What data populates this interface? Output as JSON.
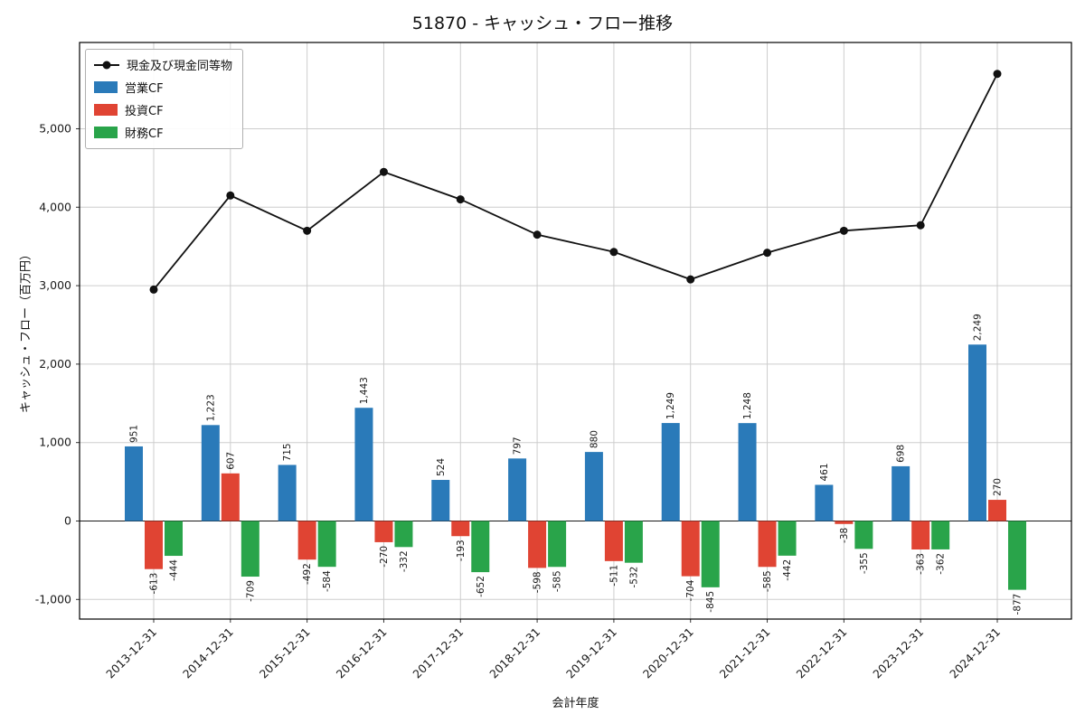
{
  "title": "51870 - キャッシュ・フロー推移",
  "axes": {
    "xlabel": "会計年度",
    "ylabel": "キャッシュ・フロー（百万円）"
  },
  "chart_data": {
    "type": "bar",
    "title": "51870 - キャッシュ・フロー推移",
    "xlabel": "会計年度",
    "ylabel": "キャッシュ・フロー（百万円）",
    "categories": [
      "2013-12-31",
      "2014-12-31",
      "2015-12-31",
      "2016-12-31",
      "2017-12-31",
      "2018-12-31",
      "2019-12-31",
      "2020-12-31",
      "2021-12-31",
      "2022-12-31",
      "2023-12-31",
      "2024-12-31"
    ],
    "series": [
      {
        "name": "現金及び現金同等物",
        "type": "line",
        "color": "#111111",
        "values": [
          2950,
          4150,
          3700,
          4450,
          4100,
          3650,
          3430,
          3080,
          3420,
          3700,
          3770,
          5700
        ]
      },
      {
        "name": "営業CF",
        "type": "bar",
        "color": "#2a7ab9",
        "values": [
          951,
          1223,
          715,
          1443,
          524,
          797,
          880,
          1249,
          1248,
          461,
          698,
          2249
        ]
      },
      {
        "name": "投資CF",
        "type": "bar",
        "color": "#e04433",
        "values": [
          -613,
          607,
          -492,
          -270,
          -193,
          -598,
          -511,
          -704,
          -585,
          -38,
          -363,
          270
        ]
      },
      {
        "name": "財務CF",
        "type": "bar",
        "color": "#29a44a",
        "values": [
          -444,
          -709,
          -584,
          -332,
          -652,
          -585,
          -532,
          -845,
          -442,
          -355,
          -362,
          -877
        ]
      }
    ],
    "ylim": [
      -1250,
      6100
    ],
    "yticks": [
      -1000,
      0,
      1000,
      2000,
      3000,
      4000,
      5000
    ],
    "grid": true,
    "legend_position": "upper-left",
    "bar_value_labels": true
  }
}
